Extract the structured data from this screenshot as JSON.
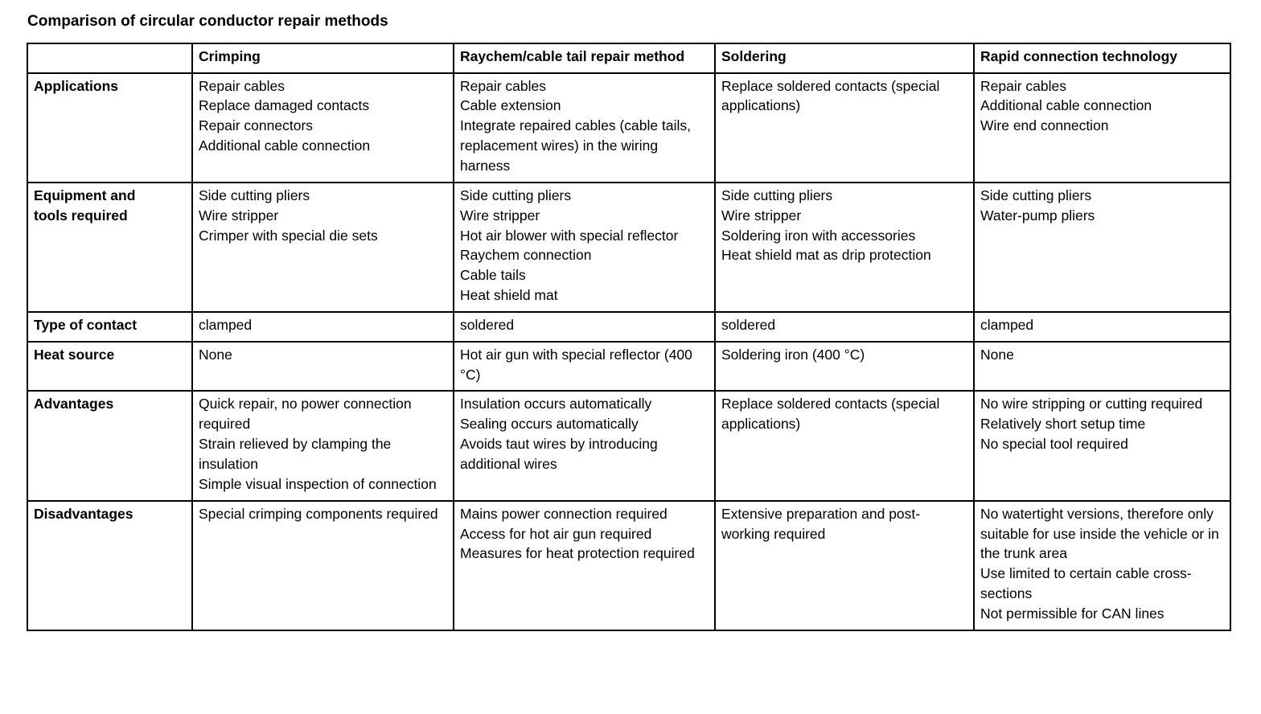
{
  "title": "Comparison of circular conductor repair methods",
  "table": {
    "corner": "",
    "headers": [
      "Crimping",
      "Raychem/cable tail repair method",
      "Soldering",
      "Rapid connection technology"
    ],
    "rows": [
      {
        "label": "Applications",
        "cells": [
          "Repair cables\nReplace damaged contacts\nRepair connectors\nAdditional cable connection",
          "Repair cables\nCable extension\nIntegrate repaired cables (cable tails, replacement wires) in the wiring harness",
          "Replace soldered contacts (special applications)",
          "Repair cables\nAdditional cable connection\nWire end connection"
        ]
      },
      {
        "label": "Equipment and\ntools required",
        "cells": [
          "Side cutting pliers\nWire stripper\nCrimper with special die sets",
          "Side cutting pliers\nWire stripper\nHot air blower with special reflector\nRaychem connection\nCable tails\nHeat shield mat",
          "Side cutting pliers\nWire stripper\nSoldering iron with accessories\nHeat shield mat as drip protection",
          "Side cutting pliers\nWater-pump pliers"
        ]
      },
      {
        "label": "Type of contact",
        "cells": [
          "clamped",
          "soldered",
          "soldered",
          "clamped"
        ]
      },
      {
        "label": "Heat source",
        "cells": [
          "None",
          "Hot air gun with special reflector (400 °C)",
          "Soldering iron (400 °C)",
          "None"
        ]
      },
      {
        "label": "Advantages",
        "cells": [
          "Quick repair, no power connection required\nStrain relieved by clamping the insulation\nSimple visual inspection of connection",
          "Insulation occurs automatically\nSealing occurs automatically\nAvoids taut wires by introducing additional wires",
          "Replace soldered contacts (special applications)",
          "No wire stripping or cutting required\nRelatively short setup time\nNo special tool required"
        ]
      },
      {
        "label": "Disadvantages",
        "cells": [
          "Special crimping components required",
          "Mains power connection required\nAccess for hot air gun required\nMeasures for heat protection required",
          "Extensive preparation and post-working required",
          "No watertight versions, therefore only suitable for use inside the vehicle or in the trunk area\nUse limited to certain cable cross-sections\nNot permissible for CAN lines"
        ]
      }
    ]
  }
}
